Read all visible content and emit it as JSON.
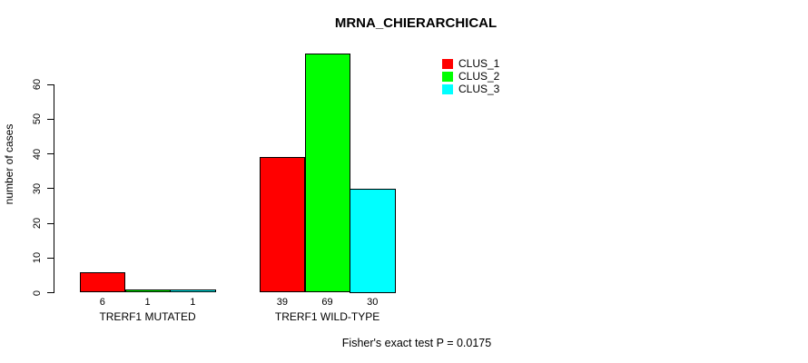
{
  "chart_data": {
    "type": "bar",
    "title": "MRNA_CHIERARCHICAL",
    "ylabel": "number of cases",
    "xlabel": "",
    "footnote": "Fisher's exact test P = 0.0175",
    "groups": [
      "TRERF1 MUTATED",
      "TRERF1 WILD-TYPE"
    ],
    "series": [
      {
        "name": "CLUS_1",
        "color": "#FF0000",
        "values": [
          6,
          39
        ]
      },
      {
        "name": "CLUS_2",
        "color": "#00FF00",
        "values": [
          1,
          69
        ]
      },
      {
        "name": "CLUS_3",
        "color": "#00FFFF",
        "values": [
          1,
          30
        ]
      }
    ],
    "yticks": [
      0,
      10,
      20,
      30,
      40,
      50,
      60
    ],
    "ylim": [
      0,
      69
    ],
    "bar_value_labels_shown": true,
    "grid": false,
    "legend": {
      "position": "top-right",
      "entries": [
        "CLUS_1",
        "CLUS_2",
        "CLUS_3"
      ]
    }
  }
}
